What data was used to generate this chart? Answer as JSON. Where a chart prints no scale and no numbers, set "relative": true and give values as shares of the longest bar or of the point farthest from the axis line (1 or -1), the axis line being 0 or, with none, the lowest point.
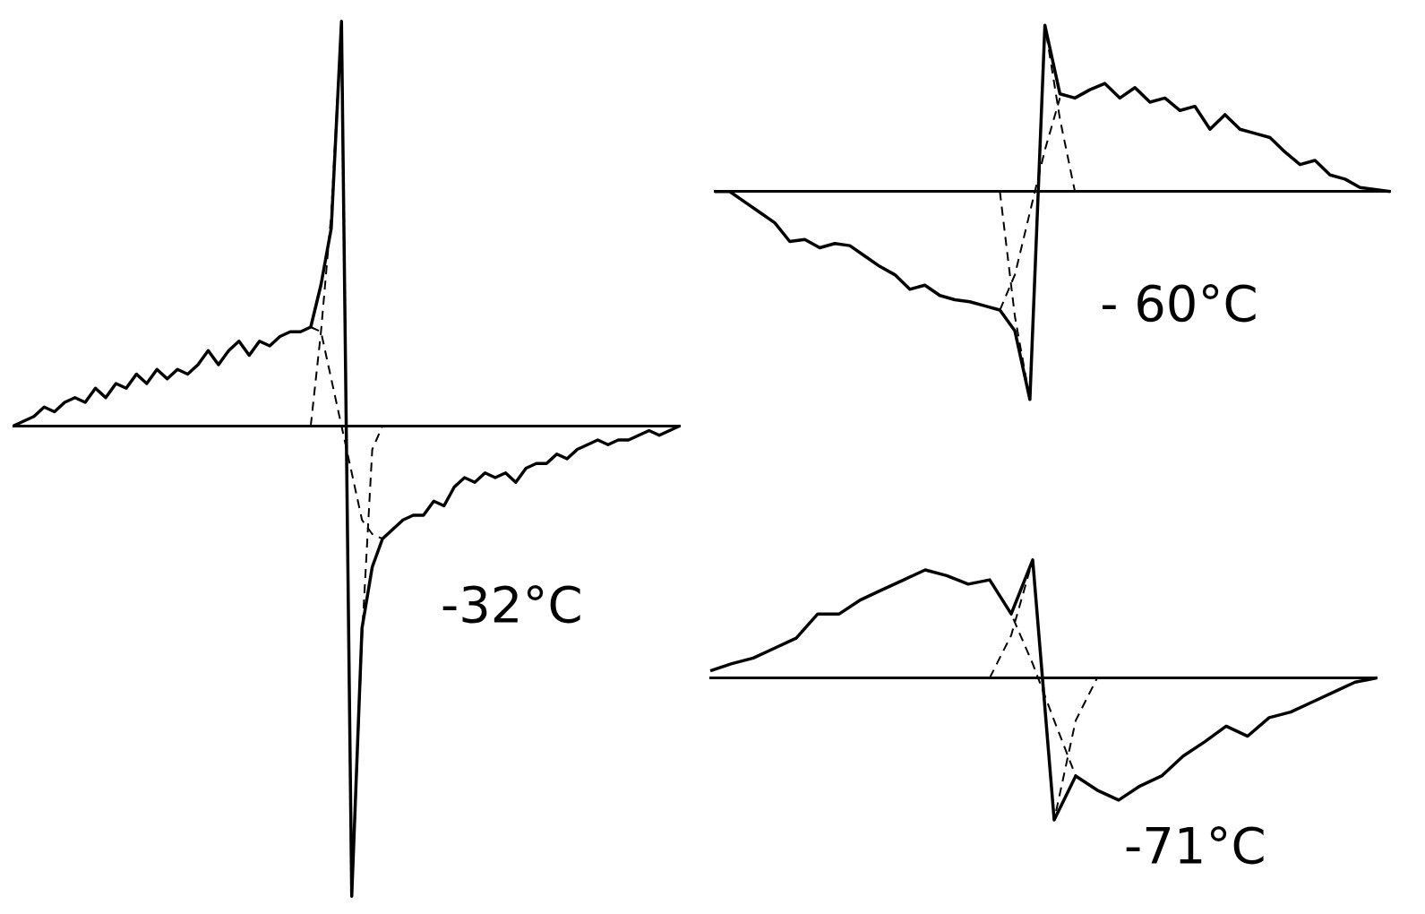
{
  "chart_data": [
    {
      "type": "line",
      "relative": true,
      "annotations": [
        "-32°C"
      ],
      "categories": [
        null,
        null,
        null,
        null,
        null,
        null,
        null,
        null,
        null,
        null,
        null,
        null,
        null,
        null,
        null,
        null,
        null,
        null,
        null,
        null,
        null,
        null,
        null,
        null,
        null,
        null,
        null,
        null,
        null,
        null,
        null,
        null,
        null,
        null,
        null,
        null,
        null,
        null,
        null,
        null,
        null,
        null,
        null,
        null,
        null,
        null,
        null,
        null,
        null,
        null,
        null,
        null,
        null,
        null,
        null,
        null,
        null,
        null,
        null,
        null,
        null,
        null,
        null,
        null,
        null,
        null
      ],
      "series": [
        {
          "color": "#000000",
          "line_style": "solid",
          "values": [
            0,
            0.01,
            0.02,
            0.04,
            0.03,
            0.05,
            0.06,
            0.05,
            0.08,
            0.06,
            0.09,
            0.08,
            0.11,
            0.09,
            0.12,
            0.1,
            0.12,
            0.11,
            0.13,
            0.16,
            0.13,
            0.16,
            0.18,
            0.15,
            0.18,
            0.17,
            0.19,
            0.2,
            0.2,
            0.21,
            0.3,
            0.42,
            0.86,
            -1,
            -0.43,
            -0.3,
            -0.24,
            -0.22,
            -0.2,
            -0.19,
            -0.19,
            -0.16,
            -0.17,
            -0.13,
            -0.11,
            -0.12,
            -0.1,
            -0.11,
            -0.1,
            -0.12,
            -0.09,
            -0.08,
            -0.08,
            -0.06,
            -0.07,
            -0.05,
            -0.04,
            -0.03,
            -0.04,
            -0.03,
            -0.03,
            -0.02,
            -0.01,
            -0.02,
            -0.01,
            0
          ]
        },
        {
          "color": "#000000",
          "line_style": "dashed",
          "values": [
            null,
            null,
            null,
            null,
            null,
            null,
            null,
            null,
            null,
            null,
            null,
            null,
            null,
            null,
            null,
            null,
            null,
            null,
            null,
            null,
            null,
            null,
            null,
            null,
            null,
            null,
            null,
            null,
            null,
            0,
            0.2,
            0.45,
            0.86,
            -1,
            -0.45,
            -0.05,
            0,
            null,
            null,
            null,
            null,
            null,
            null,
            null,
            null,
            null,
            null,
            null,
            null,
            null,
            null,
            null,
            null,
            null,
            null,
            null,
            null,
            null,
            null,
            null,
            null,
            null,
            null,
            null,
            null,
            null
          ]
        },
        {
          "color": "#000000",
          "line_style": "dashed",
          "values": [
            null,
            null,
            null,
            null,
            null,
            null,
            null,
            null,
            null,
            null,
            null,
            null,
            null,
            null,
            null,
            null,
            null,
            null,
            null,
            null,
            null,
            null,
            null,
            null,
            null,
            null,
            null,
            null,
            null,
            0.21,
            0.2,
            0.1,
            0,
            -0.1,
            -0.2,
            -0.23,
            -0.24,
            null,
            null,
            null,
            null,
            null,
            null,
            null,
            null,
            null,
            null,
            null,
            null,
            null,
            null,
            null,
            null,
            null,
            null,
            null,
            null,
            null,
            null,
            null,
            null,
            null,
            null,
            null,
            null,
            null
          ]
        }
      ]
    },
    {
      "type": "line",
      "relative": true,
      "annotations": [
        "- 60°C"
      ],
      "categories": [
        null,
        null,
        null,
        null,
        null,
        null,
        null,
        null,
        null,
        null,
        null,
        null,
        null,
        null,
        null,
        null,
        null,
        null,
        null,
        null,
        null,
        null,
        null,
        null,
        null,
        null,
        null,
        null,
        null,
        null,
        null,
        null,
        null,
        null,
        null,
        null,
        null,
        null,
        null,
        null,
        null,
        null,
        null,
        null,
        null,
        null
      ],
      "series": [
        {
          "color": "#000000",
          "line_style": "solid",
          "values": [
            0,
            0,
            -0.05,
            -0.1,
            -0.15,
            -0.24,
            -0.23,
            -0.27,
            -0.25,
            -0.26,
            -0.31,
            -0.36,
            -0.4,
            -0.47,
            -0.45,
            -0.5,
            -0.52,
            -0.53,
            -0.55,
            -0.57,
            -0.67,
            -1,
            0.8,
            0.47,
            0.45,
            0.49,
            0.52,
            0.45,
            0.5,
            0.43,
            0.45,
            0.39,
            0.41,
            0.3,
            0.37,
            0.3,
            0.28,
            0.26,
            0.19,
            0.13,
            0.15,
            0.08,
            0.06,
            0.02,
            0.01,
            0
          ]
        },
        {
          "color": "#000000",
          "line_style": "dashed",
          "values": [
            null,
            null,
            null,
            null,
            null,
            null,
            null,
            null,
            null,
            null,
            null,
            null,
            null,
            null,
            null,
            null,
            null,
            null,
            null,
            0,
            -0.6,
            -1,
            0.8,
            0.35,
            0,
            null,
            null,
            null,
            null,
            null,
            null,
            null,
            null,
            null,
            null,
            null,
            null,
            null,
            null,
            null,
            null,
            null,
            null,
            null,
            null,
            null
          ]
        },
        {
          "color": "#000000",
          "line_style": "dashed",
          "values": [
            null,
            null,
            null,
            null,
            null,
            null,
            null,
            null,
            null,
            null,
            null,
            null,
            null,
            null,
            null,
            null,
            null,
            null,
            null,
            -0.57,
            -0.4,
            -0.1,
            0.2,
            0.45,
            null,
            null,
            null,
            null,
            null,
            null,
            null,
            null,
            null,
            null,
            null,
            null,
            null,
            null,
            null,
            null,
            null,
            null,
            null,
            null,
            null,
            null
          ]
        }
      ]
    },
    {
      "type": "line",
      "relative": true,
      "annotations": [
        "-71°C"
      ],
      "categories": [
        null,
        null,
        null,
        null,
        null,
        null,
        null,
        null,
        null,
        null,
        null,
        null,
        null,
        null,
        null,
        null,
        null,
        null,
        null,
        null,
        null,
        null,
        null,
        null,
        null,
        null,
        null,
        null,
        null,
        null,
        null,
        null
      ],
      "series": [
        {
          "color": "#000000",
          "line_style": "solid",
          "values": [
            0.05,
            0.1,
            0.14,
            0.21,
            0.28,
            0.45,
            0.45,
            0.55,
            0.62,
            0.69,
            0.76,
            0.72,
            0.66,
            0.69,
            0.45,
            0.83,
            -1,
            -0.69,
            -0.79,
            -0.86,
            -0.76,
            -0.69,
            -0.55,
            -0.45,
            -0.34,
            -0.41,
            -0.28,
            -0.24,
            -0.17,
            -0.1,
            -0.03,
            0
          ]
        },
        {
          "color": "#000000",
          "line_style": "dashed",
          "values": [
            null,
            null,
            null,
            null,
            null,
            null,
            null,
            null,
            null,
            null,
            null,
            null,
            null,
            0,
            0.3,
            0.83,
            -1,
            -0.3,
            0,
            null,
            null,
            null,
            null,
            null,
            null,
            null,
            null,
            null,
            null,
            null,
            null,
            null
          ]
        },
        {
          "color": "#000000",
          "line_style": "dashed",
          "values": [
            null,
            null,
            null,
            null,
            null,
            null,
            null,
            null,
            null,
            null,
            null,
            null,
            null,
            0.69,
            0.45,
            0.1,
            -0.3,
            -0.69,
            null,
            null,
            null,
            null,
            null,
            null,
            null,
            null,
            null,
            null,
            null,
            null,
            null,
            null
          ]
        }
      ]
    }
  ]
}
